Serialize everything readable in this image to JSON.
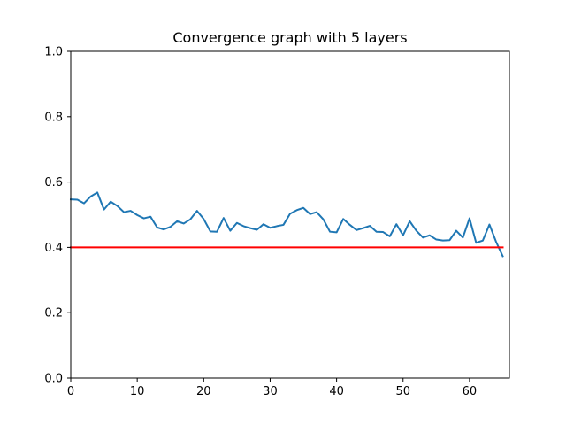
{
  "chart_data": {
    "type": "line",
    "title": "Convergence graph with 5 layers",
    "xlabel": "",
    "ylabel": "",
    "xlim": [
      0,
      66
    ],
    "ylim": [
      0.0,
      1.0
    ],
    "x_ticks": [
      0,
      10,
      20,
      30,
      40,
      50,
      60
    ],
    "x_tick_labels": [
      "0",
      "10",
      "20",
      "30",
      "40",
      "50",
      "60"
    ],
    "y_ticks": [
      0.0,
      0.2,
      0.4,
      0.6,
      0.8,
      1.0
    ],
    "y_tick_labels": [
      "0.0",
      "0.2",
      "0.4",
      "0.6",
      "0.8",
      "1.0"
    ],
    "grid": false,
    "series": [
      {
        "color": "#1f77b4",
        "x": [
          0,
          1,
          2,
          3,
          4,
          5,
          6,
          7,
          8,
          9,
          10,
          11,
          12,
          13,
          14,
          15,
          16,
          17,
          18,
          19,
          20,
          21,
          22,
          23,
          24,
          25,
          26,
          27,
          28,
          29,
          30,
          31,
          32,
          33,
          34,
          35,
          36,
          37,
          38,
          39,
          40,
          41,
          42,
          43,
          44,
          45,
          46,
          47,
          48,
          49,
          50,
          51,
          52,
          53,
          54,
          55,
          56,
          57,
          58,
          59,
          60,
          61,
          62,
          63,
          64,
          65
        ],
        "values": [
          0.547,
          0.546,
          0.535,
          0.556,
          0.568,
          0.516,
          0.54,
          0.527,
          0.508,
          0.512,
          0.499,
          0.489,
          0.494,
          0.461,
          0.455,
          0.463,
          0.48,
          0.473,
          0.486,
          0.512,
          0.487,
          0.449,
          0.448,
          0.49,
          0.451,
          0.475,
          0.465,
          0.459,
          0.454,
          0.471,
          0.46,
          0.465,
          0.469,
          0.503,
          0.514,
          0.521,
          0.502,
          0.508,
          0.486,
          0.448,
          0.446,
          0.487,
          0.469,
          0.453,
          0.459,
          0.466,
          0.448,
          0.447,
          0.434,
          0.471,
          0.437,
          0.48,
          0.451,
          0.43,
          0.437,
          0.424,
          0.421,
          0.422,
          0.451,
          0.43,
          0.489,
          0.414,
          0.421,
          0.47,
          0.417,
          0.373
        ]
      },
      {
        "color": "#ff0000",
        "x": [
          0,
          65
        ],
        "values": [
          0.4,
          0.4
        ]
      }
    ]
  }
}
